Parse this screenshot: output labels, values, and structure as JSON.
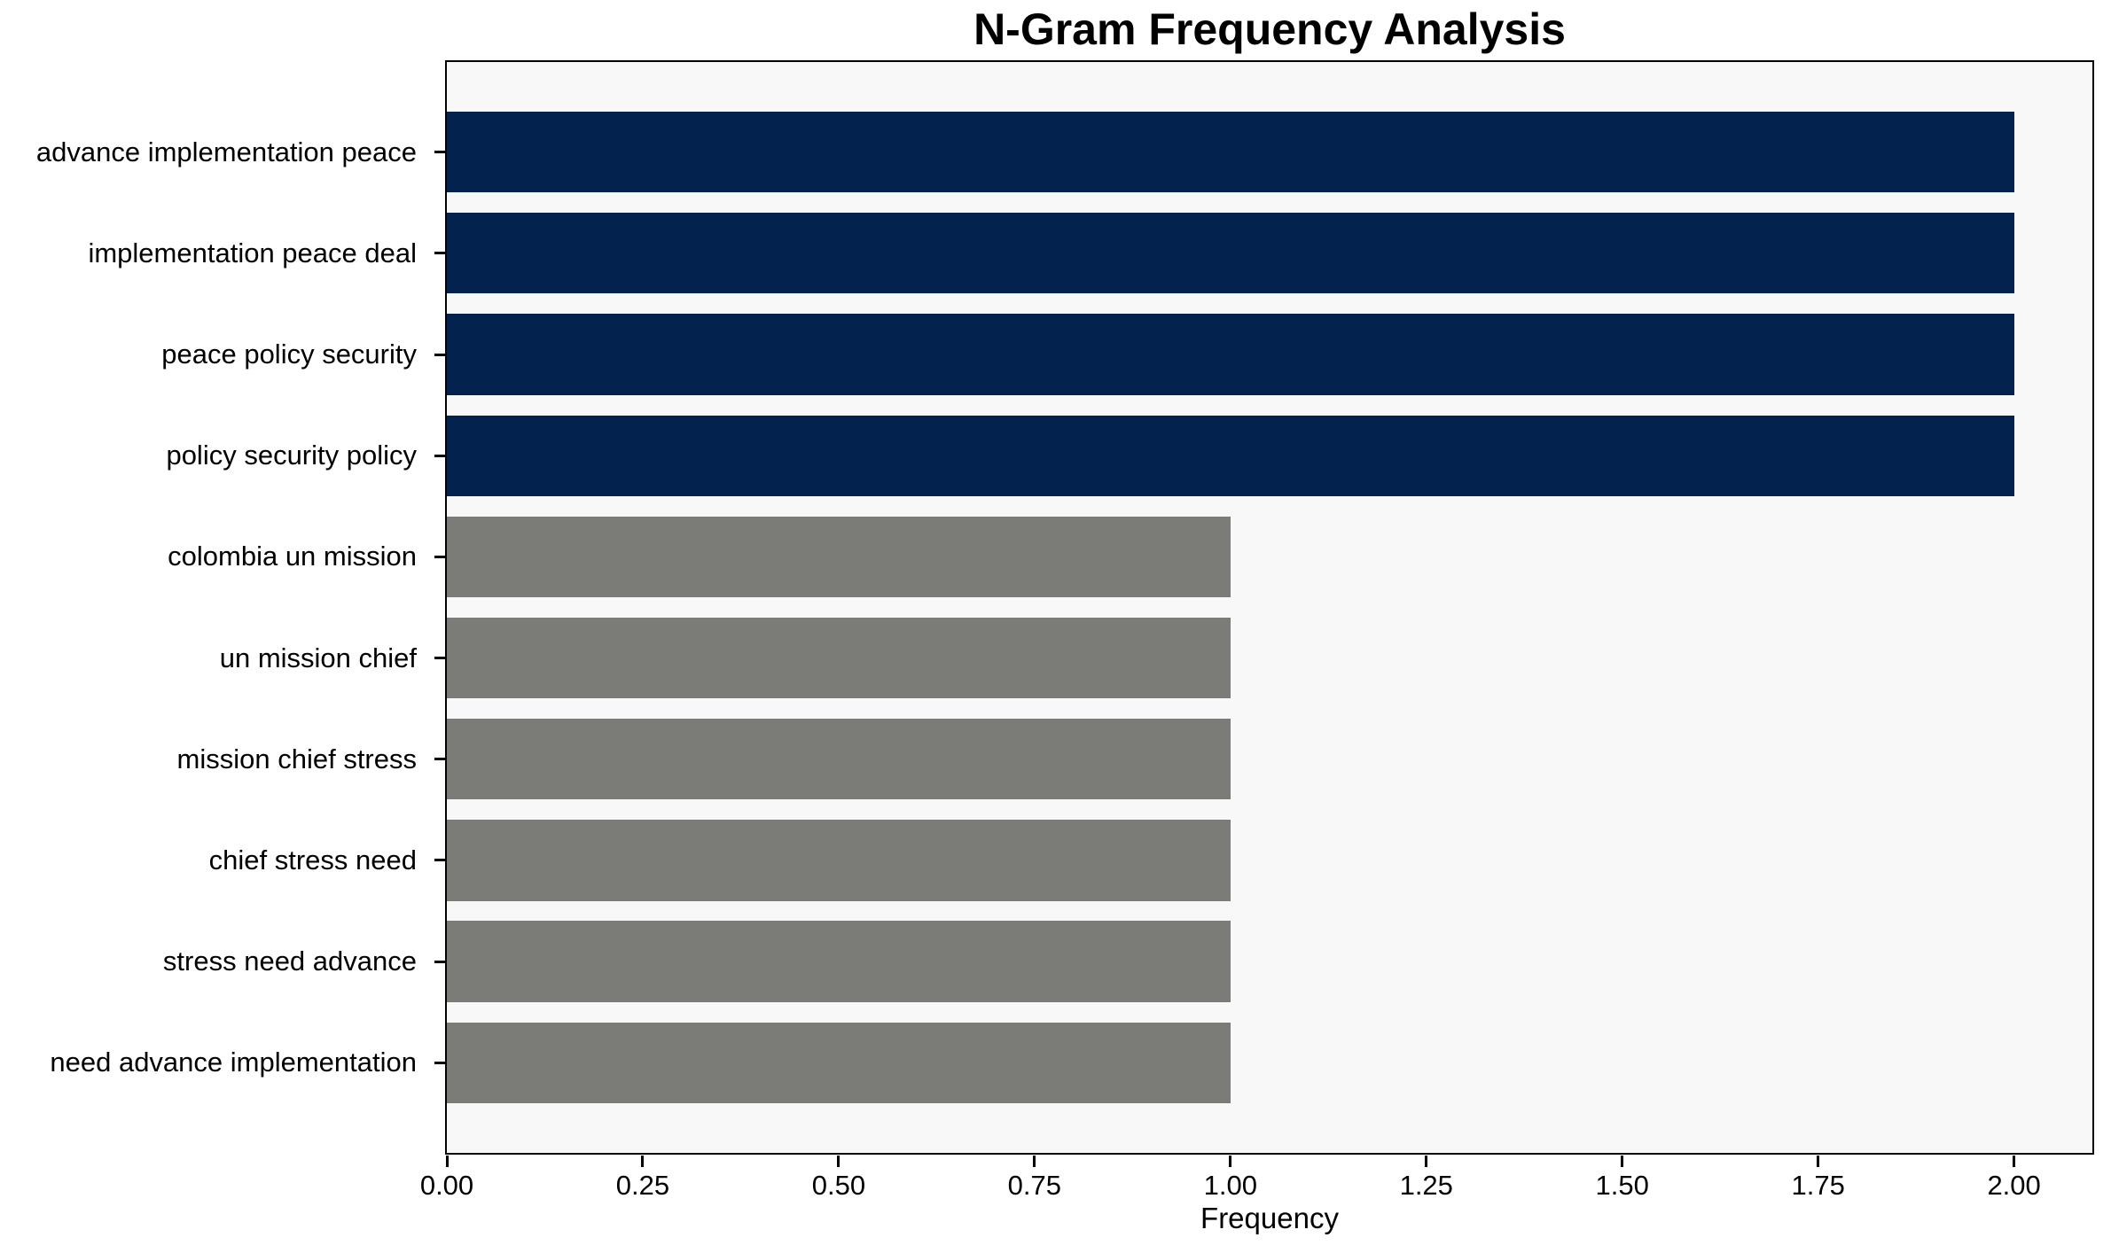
{
  "chart_data": {
    "type": "bar",
    "orientation": "horizontal",
    "title": "N-Gram Frequency Analysis",
    "xlabel": "Frequency",
    "ylabel": "",
    "categories": [
      "advance implementation peace",
      "implementation peace deal",
      "peace policy security",
      "policy security policy",
      "colombia un mission",
      "un mission chief",
      "mission chief stress",
      "chief stress need",
      "stress need advance",
      "need advance implementation"
    ],
    "values": [
      2,
      2,
      2,
      2,
      1,
      1,
      1,
      1,
      1,
      1
    ],
    "bar_colors": [
      "#03224d",
      "#03224d",
      "#03224d",
      "#03224d",
      "#7b7b78",
      "#7b7b78",
      "#7b7b78",
      "#7b7b78",
      "#7b7b78",
      "#7b7b78"
    ],
    "xlim": [
      0,
      2.1
    ],
    "xticks": [
      0,
      0.25,
      0.5,
      0.75,
      1.0,
      1.25,
      1.5,
      1.75,
      2.0
    ],
    "xtick_labels": [
      "0.00",
      "0.25",
      "0.50",
      "0.75",
      "1.00",
      "1.25",
      "1.50",
      "1.75",
      "2.00"
    ],
    "grid": false,
    "legend": null,
    "colors": {
      "bar_high": "#03224d",
      "bar_low": "#7b7b78",
      "plot_background": "#f8f8f8",
      "figure_background": "#ffffff",
      "spine": "#000000",
      "text": "#000000"
    }
  }
}
